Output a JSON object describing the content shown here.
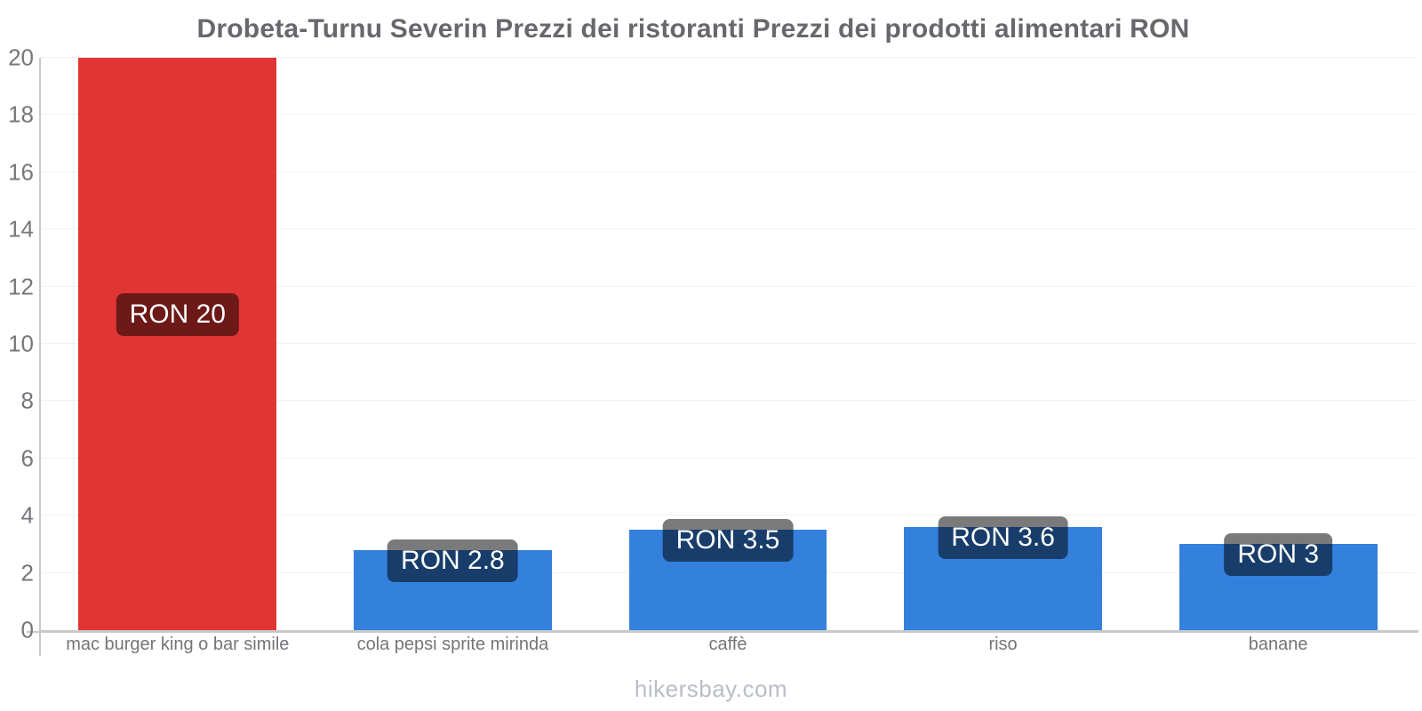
{
  "title": "Drobeta-Turnu Severin Prezzi dei ristoranti Prezzi dei prodotti alimentari RON",
  "footer": "hikersbay.com",
  "colors": {
    "restaurant_bar": "#e13534",
    "grocery_bar": "#3480dd",
    "value_label_bg": "rgba(0,0,0,0.52)",
    "value_label_text": "#ffffff",
    "axis_line": "#c9c9c9",
    "gridline": "#f2f2f2",
    "title_text": "#66686c",
    "tick_text": "#76777b",
    "category_text": "#737578",
    "footer_text": "#b9bdc6"
  },
  "chart_data": {
    "type": "bar",
    "title": "Drobeta-Turnu Severin Prezzi dei ristoranti Prezzi dei prodotti alimentari RON",
    "categories": [
      "mac burger king o bar simile",
      "cola pepsi sprite mirinda",
      "caffè",
      "riso",
      "banane"
    ],
    "values": [
      20,
      2.8,
      3.5,
      3.6,
      3
    ],
    "value_labels": [
      "RON 20",
      "RON 2.8",
      "RON 3.5",
      "RON 3.6",
      "RON 3"
    ],
    "bar_colors": [
      "#e13534",
      "#3480dd",
      "#3480dd",
      "#3480dd",
      "#3480dd"
    ],
    "currency": "RON",
    "xlabel": "",
    "ylabel": "",
    "ylim": [
      0,
      20
    ],
    "ytick_step": 2,
    "yticks": [
      0,
      2,
      4,
      6,
      8,
      10,
      12,
      14,
      16,
      18,
      20
    ],
    "grid": true,
    "legend": false
  }
}
